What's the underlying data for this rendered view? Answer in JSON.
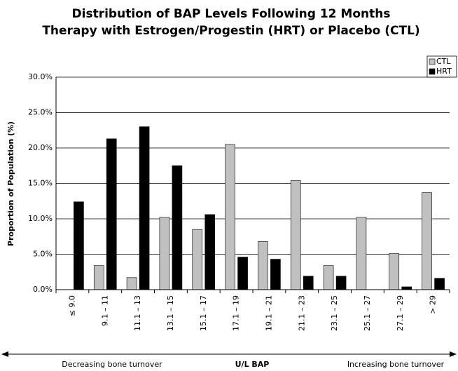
{
  "chart_data": {
    "type": "bar",
    "title": [
      "Distribution of BAP Levels Following 12 Months",
      "Therapy with Estrogen/Progestin (HRT) or Placebo (CTL)"
    ],
    "ylabel": "Proportion of Population (%)",
    "xlabel": "U/L BAP",
    "x_left_note": "Decreasing bone turnover",
    "x_right_note": "Increasing bone turnover",
    "categories": [
      "≤ 9.0",
      "9.1 – 11",
      "11.1 – 13",
      "13.1 – 15",
      "15.1 – 17",
      "17.1 – 19",
      "19.1 – 21",
      "21.1 – 23",
      "23.1 – 25",
      "25.1 – 27",
      "27.1 – 29",
      "> 29"
    ],
    "series": [
      {
        "name": "CTL",
        "color": "#c0c0c0",
        "values": [
          0,
          3.4,
          1.7,
          10.2,
          8.5,
          20.5,
          6.8,
          15.4,
          3.4,
          10.2,
          5.1,
          13.7
        ]
      },
      {
        "name": "HRT",
        "color": "#000000",
        "values": [
          12.4,
          21.3,
          23.0,
          17.5,
          10.6,
          4.6,
          4.3,
          1.9,
          1.9,
          0,
          0.4,
          1.6
        ]
      }
    ],
    "ylim": [
      0,
      30
    ],
    "yticks": [
      {
        "value": 0,
        "label": "0.0%"
      },
      {
        "value": 5,
        "label": "5.0%"
      },
      {
        "value": 10,
        "label": "10.0%"
      },
      {
        "value": 15,
        "label": "15.0%"
      },
      {
        "value": 20,
        "label": "20.0%"
      },
      {
        "value": 25,
        "label": "25.0%"
      },
      {
        "value": 30,
        "label": "30.0%"
      }
    ],
    "grid": true,
    "legend": "top-right"
  }
}
